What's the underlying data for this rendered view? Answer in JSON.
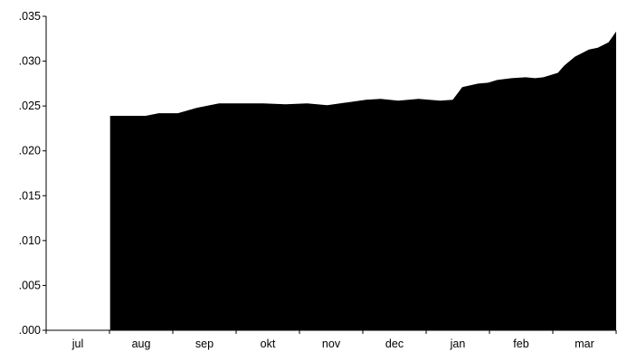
{
  "chart_data": {
    "type": "area",
    "title": "",
    "xlabel": "",
    "ylabel": "",
    "fill_color": "#000000",
    "grid": false,
    "legend": "none",
    "x_categories": [
      "jul",
      "aug",
      "sep",
      "okt",
      "nov",
      "dec",
      "jan",
      "feb",
      "mar"
    ],
    "xlim": [
      0,
      9
    ],
    "ylim": [
      0.0,
      0.035
    ],
    "y_ticks": [
      {
        "value": 0.0,
        "label": ".000"
      },
      {
        "value": 0.005,
        "label": ".005"
      },
      {
        "value": 0.01,
        "label": ".010"
      },
      {
        "value": 0.015,
        "label": ".015"
      },
      {
        "value": 0.02,
        "label": ".020"
      },
      {
        "value": 0.025,
        "label": ".025"
      },
      {
        "value": 0.03,
        "label": ".030"
      },
      {
        "value": 0.035,
        "label": ".035"
      }
    ],
    "series": [
      {
        "x": [
          1.01,
          1.27,
          1.57,
          1.78,
          2.08,
          2.38,
          2.73,
          3.08,
          3.43,
          3.78,
          4.12,
          4.44,
          4.75,
          5.05,
          5.28,
          5.56,
          5.88,
          6.22,
          6.42,
          6.57,
          6.82,
          6.98,
          7.12,
          7.35,
          7.57,
          7.72,
          7.85,
          8.08,
          8.18,
          8.35,
          8.57,
          8.71,
          8.88,
          9.0
        ],
        "y": [
          0.0239,
          0.0239,
          0.0239,
          0.0242,
          0.0242,
          0.0248,
          0.0253,
          0.0253,
          0.0253,
          0.0252,
          0.0253,
          0.0251,
          0.0254,
          0.0257,
          0.0258,
          0.0256,
          0.0258,
          0.0256,
          0.0257,
          0.0271,
          0.0275,
          0.0276,
          0.0279,
          0.0281,
          0.0282,
          0.0281,
          0.0282,
          0.0287,
          0.0295,
          0.0305,
          0.0313,
          0.0315,
          0.0321,
          0.0333
        ]
      }
    ]
  }
}
